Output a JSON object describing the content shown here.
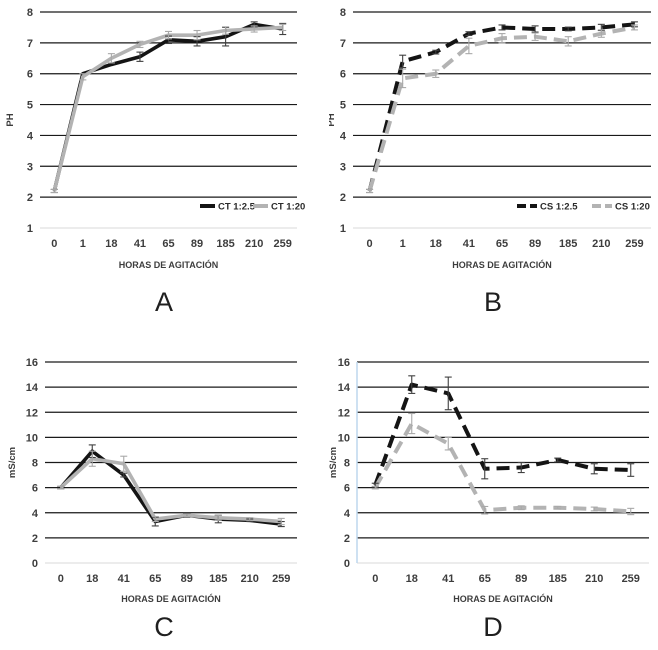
{
  "colors": {
    "series_black": "#141414",
    "series_gray": "#b3b3b3",
    "error_black": "#3f3f3f",
    "error_gray": "#a9a9a9",
    "gridline": "#1a1a1a",
    "baseline": "#d9d9d9",
    "axis_text": "#3d3d3d",
    "blue_axis": "#bdd7ee"
  },
  "chart_data": [
    {
      "id": "A",
      "caption": "A",
      "type": "line",
      "xlabel": "HORAS DE AGITACIÓN",
      "ylabel": "PH",
      "categories": [
        "0",
        "1",
        "18",
        "41",
        "65",
        "89",
        "185",
        "210",
        "259"
      ],
      "ylim": [
        1,
        8
      ],
      "ytick_step": 1,
      "grid": true,
      "legend": {
        "show": true,
        "position": "inside-bottom-right",
        "entries": [
          "CT  1:2.5",
          "CT 1:20"
        ]
      },
      "series": [
        {
          "name": "CT  1:2.5",
          "color": "#141414",
          "error_color": "#3f3f3f",
          "dash": false,
          "values": [
            2.2,
            6.0,
            6.3,
            6.55,
            7.1,
            7.05,
            7.2,
            7.6,
            7.45
          ],
          "errors": [
            0.05,
            0,
            0,
            0.15,
            0.12,
            0.15,
            0.3,
            0.08,
            0.18
          ]
        },
        {
          "name": "CT 1:20",
          "color": "#b3b3b3",
          "error_color": "#a9a9a9",
          "dash": false,
          "values": [
            2.2,
            5.9,
            6.5,
            6.95,
            7.25,
            7.25,
            7.4,
            7.45,
            7.5
          ],
          "errors": [
            0.05,
            0.1,
            0.15,
            0.1,
            0.12,
            0.15,
            0.12,
            0.1,
            0.1
          ]
        }
      ]
    },
    {
      "id": "B",
      "caption": "B",
      "type": "line",
      "xlabel": "HORAS DE AGITACIÓN",
      "ylabel": "PH",
      "categories": [
        "0",
        "1",
        "18",
        "41",
        "65",
        "89",
        "185",
        "210",
        "259"
      ],
      "ylim": [
        1,
        8
      ],
      "ytick_step": 1,
      "grid": true,
      "legend": {
        "show": true,
        "position": "inside-bottom-right",
        "entries": [
          "CS 1:2.5",
          "CS 1:20"
        ]
      },
      "series": [
        {
          "name": "CS 1:2.5",
          "color": "#141414",
          "error_color": "#3f3f3f",
          "dash": true,
          "values": [
            2.2,
            6.4,
            6.7,
            7.3,
            7.5,
            7.45,
            7.45,
            7.5,
            7.6
          ],
          "errors": [
            0.05,
            0.2,
            0.06,
            0.06,
            0.08,
            0.1,
            0.06,
            0.1,
            0.08
          ]
        },
        {
          "name": "CS 1:20",
          "color": "#b3b3b3",
          "error_color": "#a9a9a9",
          "dash": true,
          "values": [
            2.2,
            5.85,
            6.0,
            6.9,
            7.15,
            7.2,
            7.05,
            7.3,
            7.5
          ],
          "errors": [
            0.05,
            0.3,
            0.12,
            0.25,
            0.15,
            0.12,
            0.15,
            0.12,
            0.08
          ]
        }
      ]
    },
    {
      "id": "C",
      "caption": "C",
      "type": "line",
      "xlabel": "HORAS DE AGITACIÓN",
      "ylabel": "mS/cm",
      "categories": [
        "0",
        "18",
        "41",
        "65",
        "89",
        "185",
        "210",
        "259"
      ],
      "ylim": [
        0,
        16
      ],
      "ytick_step": 2,
      "grid": true,
      "legend": {
        "show": false,
        "entries": []
      },
      "series": [
        {
          "name": "",
          "color": "#141414",
          "error_color": "#3f3f3f",
          "dash": false,
          "values": [
            6.0,
            8.9,
            7.0,
            3.3,
            3.8,
            3.5,
            3.4,
            3.1
          ],
          "errors": [
            0.1,
            0.5,
            0.15,
            0.35,
            0.15,
            0.3,
            0.1,
            0.2
          ]
        },
        {
          "name": "",
          "color": "#b3b3b3",
          "error_color": "#a9a9a9",
          "dash": false,
          "values": [
            6.0,
            8.3,
            7.9,
            3.5,
            3.8,
            3.6,
            3.5,
            3.3
          ],
          "errors": [
            0.1,
            0.6,
            0.6,
            0.2,
            0.1,
            0.2,
            0.1,
            0.25
          ]
        }
      ]
    },
    {
      "id": "D",
      "caption": "D",
      "type": "line",
      "xlabel": "HORAS DE AGITACIÓN",
      "ylabel": "mS/cm",
      "categories": [
        "0",
        "18",
        "41",
        "65",
        "89",
        "185",
        "210",
        "259"
      ],
      "ylim": [
        0,
        16
      ],
      "ytick_step": 2,
      "grid": true,
      "legend": {
        "show": false,
        "entries": []
      },
      "series": [
        {
          "name": "",
          "color": "#141414",
          "error_color": "#3f3f3f",
          "dash": true,
          "values": [
            6.2,
            14.2,
            13.5,
            7.5,
            7.6,
            8.2,
            7.5,
            7.4
          ],
          "errors": [
            0.15,
            0.7,
            1.3,
            0.8,
            0.4,
            0.15,
            0.4,
            0.5
          ]
        },
        {
          "name": "",
          "color": "#b3b3b3",
          "error_color": "#a9a9a9",
          "dash": true,
          "values": [
            6.0,
            11.1,
            9.5,
            4.2,
            4.4,
            4.4,
            4.3,
            4.1
          ],
          "errors": [
            0.1,
            0.8,
            0.5,
            0.3,
            0.15,
            0.1,
            0.15,
            0.25
          ]
        }
      ]
    }
  ]
}
